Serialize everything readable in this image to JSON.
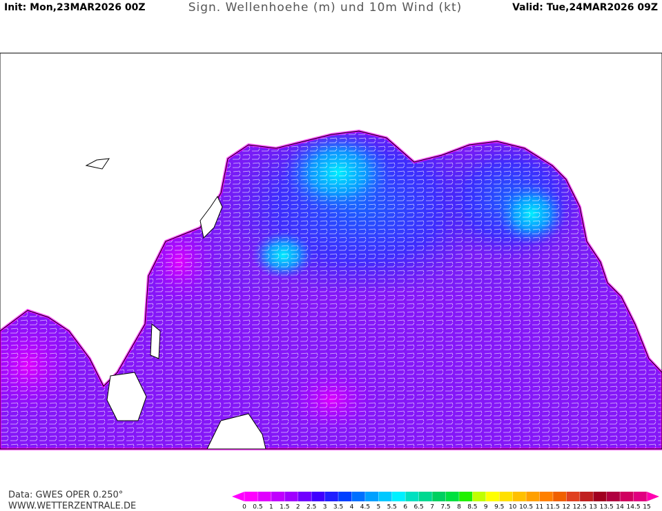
{
  "header": {
    "init": "Init: Mon,23MAR2026 00Z",
    "title": "Sign. Wellenhoehe (m) und 10m Wind (kt)",
    "valid": "Valid: Tue,24MAR2026 09Z"
  },
  "footer": {
    "source": "Data: GWES OPER 0.250°",
    "website": "WWW.WETTERZENTRALE.DE"
  },
  "colorbar": {
    "ticks": [
      0,
      0.5,
      1,
      1.5,
      2,
      2.5,
      3,
      3.5,
      4,
      4.5,
      5,
      5.5,
      6,
      6.5,
      7,
      7.5,
      8,
      8.5,
      9,
      9.5,
      10,
      10.5,
      11,
      11.5,
      12,
      12.5,
      13,
      13.5,
      14,
      14.5,
      15
    ],
    "colors": [
      "#ff00ff",
      "#e000ff",
      "#c000ff",
      "#a000ff",
      "#7000ff",
      "#4000ff",
      "#2020ff",
      "#0040ff",
      "#0070ff",
      "#00a0ff",
      "#00c8ff",
      "#00f0ff",
      "#00e0c0",
      "#00d890",
      "#00d060",
      "#00e040",
      "#20f000",
      "#c0ff00",
      "#ffff00",
      "#ffe000",
      "#ffc000",
      "#ffa000",
      "#ff8000",
      "#f06000",
      "#e04020",
      "#c02020",
      "#a00020",
      "#b00040",
      "#d00060",
      "#e00080"
    ],
    "under_color": "#ff00ff",
    "over_color": "#ff00b0"
  }
}
